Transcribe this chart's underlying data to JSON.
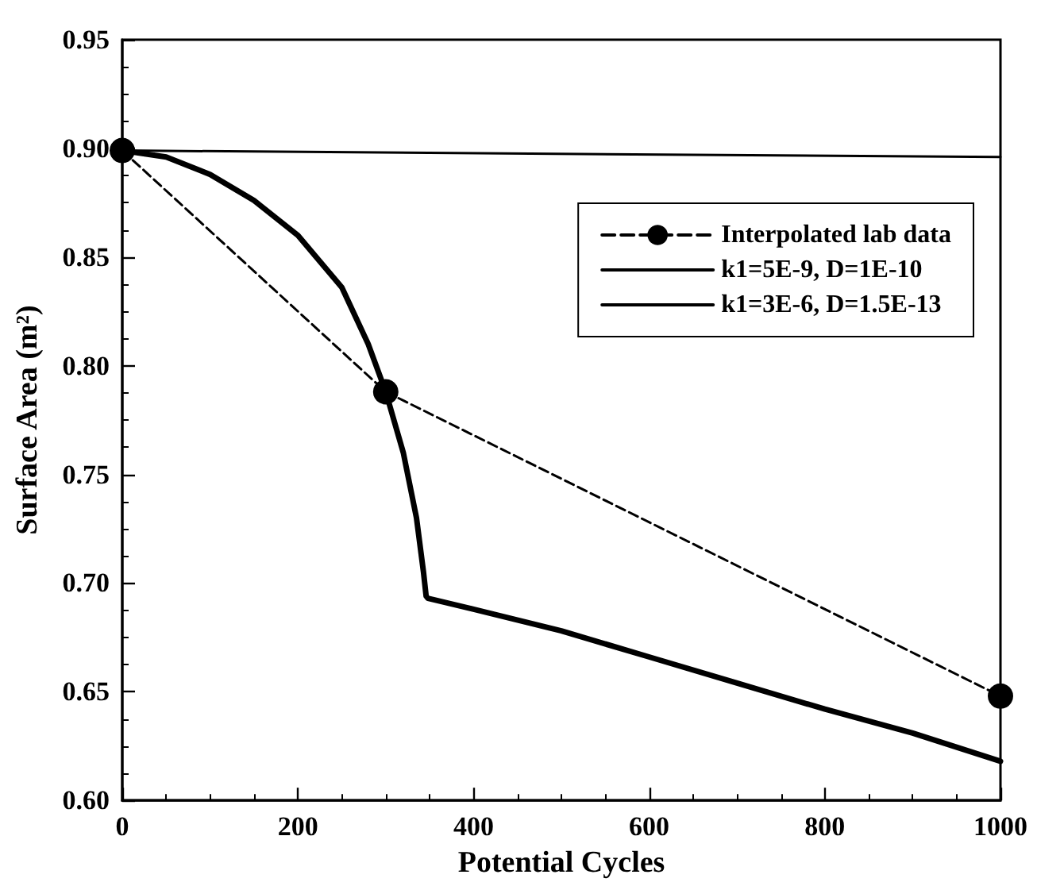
{
  "chart_data": {
    "type": "line",
    "xlabel": "Potential Cycles",
    "ylabel": "Surface Area (m²)",
    "xlim": [
      0,
      1000
    ],
    "xticks": [
      0,
      200,
      400,
      600,
      800,
      1000
    ],
    "ylim": [
      0.6,
      0.95
    ],
    "yticks": [
      {
        "value": 0.6,
        "label": "0.60"
      },
      0.65,
      {
        "value": 0.7,
        "label": "0.70"
      },
      0.75,
      {
        "value": 0.8,
        "label": "0.80"
      },
      0.85,
      {
        "value": 0.9,
        "label": "0.90"
      },
      0.95
    ],
    "grid": false,
    "legend": "top right",
    "series": [
      {
        "name": "Interpolated lab data",
        "color": "#000000",
        "line_style": "dashed",
        "marker": "circle",
        "x": [
          0,
          300,
          1000
        ],
        "values": [
          0.899,
          0.788,
          0.648
        ]
      },
      {
        "name": "k1=5E-9, D=1E-10",
        "color": "#000000",
        "line_style": "solid",
        "marker": "none",
        "x": [
          0,
          1000
        ],
        "values": [
          0.899,
          0.896
        ]
      },
      {
        "name": "k1=3E-6, D=1.5E-13",
        "color": "#000000",
        "line_style": "solid",
        "marker": "none",
        "x": [
          0,
          50,
          100,
          150,
          200,
          250,
          280,
          300,
          320,
          335,
          343,
          346,
          348,
          400,
          500,
          600,
          700,
          800,
          900,
          1000
        ],
        "values": [
          0.899,
          0.896,
          0.888,
          0.876,
          0.86,
          0.836,
          0.81,
          0.788,
          0.76,
          0.73,
          0.705,
          0.694,
          0.693,
          0.688,
          0.678,
          0.666,
          0.654,
          0.642,
          0.631,
          0.618
        ]
      }
    ]
  }
}
